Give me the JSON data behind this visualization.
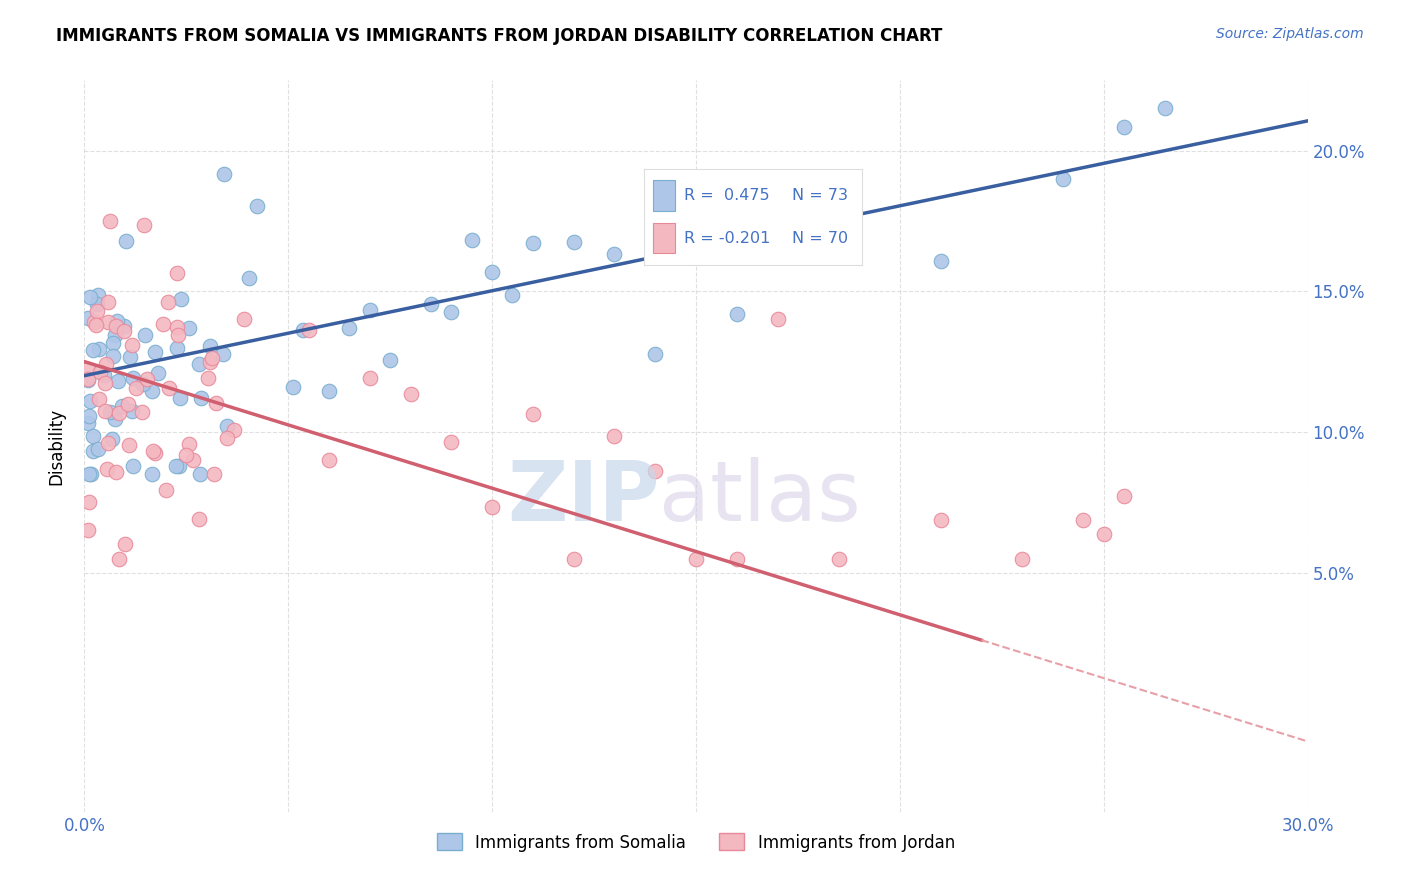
{
  "title": "IMMIGRANTS FROM SOMALIA VS IMMIGRANTS FROM JORDAN DISABILITY CORRELATION CHART",
  "source": "Source: ZipAtlas.com",
  "ylabel": "Disability",
  "xlim": [
    0.0,
    0.3
  ],
  "ylim": [
    -0.035,
    0.225
  ],
  "somalia_color": "#aec6e8",
  "jordan_color": "#f4b8c1",
  "somalia_edge": "#7aaed0",
  "jordan_edge": "#e8899a",
  "regression_somalia_color": "#3a5fa0",
  "regression_jordan_solid_color": "#d06070",
  "regression_jordan_dash_color": "#e8a0a8",
  "background_color": "#ffffff",
  "grid_color": "#cccccc",
  "tick_color": "#4472c4",
  "somalia_label": "Immigrants from Somalia",
  "jordan_label": "Immigrants from Jordan",
  "legend_r1": "R =  0.475",
  "legend_n1": "N = 73",
  "legend_r2": "R = -0.201",
  "legend_n2": "N = 70",
  "watermark_zip": "ZIP",
  "watermark_atlas": "atlas"
}
